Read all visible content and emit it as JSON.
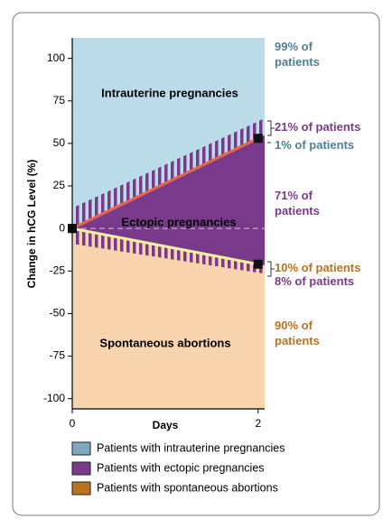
{
  "chart_data": {
    "type": "area",
    "ylabel": "Change in hCG Level (%)",
    "xlabel": "Days",
    "x": [
      0,
      2
    ],
    "xlim": [
      0,
      2.07
    ],
    "xticks": [
      0,
      2
    ],
    "ylim": [
      -106,
      112
    ],
    "yticks": [
      100,
      75,
      50,
      25,
      0,
      -25,
      -50,
      -75,
      -100
    ],
    "series": [
      {
        "name": "Patients with intrauterine pregnancies",
        "label": "Intrauterine pregnancies",
        "color": "#bcdbe8",
        "legend_color": "#7fa9bf",
        "label_color": "#4d7f98"
      },
      {
        "name": "Patients with ectopic pregnancies",
        "label": "Ectopic pregnancies",
        "color": "#7a3a8c",
        "legend_color": "#7a3a8c",
        "label_color": "#ffffff"
      },
      {
        "name": "Patients with spontaneous abortions",
        "label": "Spontaneous abortions",
        "color": "#f7d4ae",
        "legend_color": "#b8731f",
        "label_color": "#a8620f"
      }
    ],
    "lines": [
      {
        "color": "#e8664a",
        "values": [
          0,
          53
        ],
        "edge": [
          12,
          63
        ]
      },
      {
        "color": "#f4f09c",
        "values": [
          0,
          -21
        ],
        "edge": [
          -9,
          -26
        ]
      }
    ],
    "reference_line": 0,
    "annotations": [
      {
        "text": "99% of patients",
        "color": "#4d7f98"
      },
      {
        "text": "21% of patients",
        "color": "#7a3a8c"
      },
      {
        "text": "1% of patients",
        "color": "#4d7f98"
      },
      {
        "text": "71% of patients",
        "color": "#7a3a8c"
      },
      {
        "text": "10% of patients",
        "color": "#b8731f"
      },
      {
        "text": "8% of patients",
        "color": "#7a3a8c"
      },
      {
        "text": "90% of patients",
        "color": "#b8731f"
      }
    ]
  }
}
